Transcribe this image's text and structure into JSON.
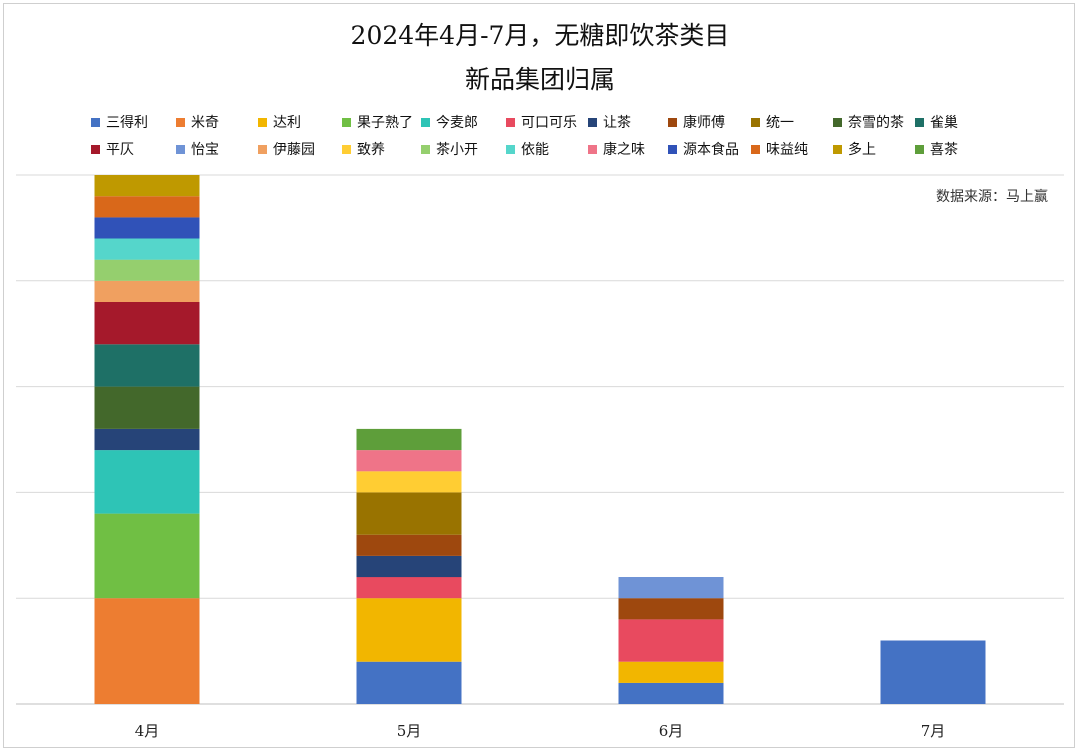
{
  "header": {
    "title_line1": "2024年4月-7月，无糖即饮茶类目",
    "title_line2": "新品集团归属"
  },
  "source_note": "数据来源：马上赢",
  "chart_data": {
    "type": "bar",
    "stacked": true,
    "categories": [
      "4月",
      "5月",
      "6月",
      "7月"
    ],
    "ylim": [
      0,
      25
    ],
    "yticks": [
      0,
      5,
      10,
      15,
      20,
      25
    ],
    "grid": true,
    "legend_position": "top",
    "series": [
      {
        "name": "三得利",
        "color": "#4472C4",
        "values": [
          0,
          2,
          1,
          3
        ]
      },
      {
        "name": "米奇",
        "color": "#ED7D31",
        "values": [
          5,
          0,
          0,
          0
        ]
      },
      {
        "name": "达利",
        "color": "#F2B600",
        "values": [
          0,
          3,
          1,
          0
        ]
      },
      {
        "name": "果子熟了",
        "color": "#70BF44",
        "values": [
          4,
          0,
          0,
          0
        ]
      },
      {
        "name": "今麦郎",
        "color": "#2EC4B6",
        "values": [
          3,
          0,
          0,
          0
        ]
      },
      {
        "name": "可口可乐",
        "color": "#E84A5F",
        "values": [
          0,
          1,
          2,
          0
        ]
      },
      {
        "name": "让茶",
        "color": "#264478",
        "values": [
          1,
          1,
          0,
          0
        ]
      },
      {
        "name": "康师傅",
        "color": "#9E480E",
        "values": [
          0,
          1,
          1,
          0
        ]
      },
      {
        "name": "统一",
        "color": "#997300",
        "values": [
          0,
          2,
          0,
          0
        ]
      },
      {
        "name": "奈雪的茶",
        "color": "#43682B",
        "values": [
          2,
          0,
          0,
          0
        ]
      },
      {
        "name": "雀巢",
        "color": "#1E7066",
        "values": [
          2,
          0,
          0,
          0
        ]
      },
      {
        "name": "平仄",
        "color": "#A5192B",
        "values": [
          2,
          0,
          0,
          0
        ]
      },
      {
        "name": "怡宝",
        "color": "#6F93D6",
        "values": [
          0,
          0,
          1,
          0
        ]
      },
      {
        "name": "伊藤园",
        "color": "#F0A060",
        "values": [
          1,
          0,
          0,
          0
        ]
      },
      {
        "name": "致养",
        "color": "#FFCD33",
        "values": [
          0,
          1,
          0,
          0
        ]
      },
      {
        "name": "茶小开",
        "color": "#95CF6E",
        "values": [
          1,
          0,
          0,
          0
        ]
      },
      {
        "name": "依能",
        "color": "#55D6CB",
        "values": [
          1,
          0,
          0,
          0
        ]
      },
      {
        "name": "康之味",
        "color": "#EF7488",
        "values": [
          0,
          1,
          0,
          0
        ]
      },
      {
        "name": "源本食品",
        "color": "#3052B8",
        "values": [
          1,
          0,
          0,
          0
        ]
      },
      {
        "name": "味益纯",
        "color": "#D9681A",
        "values": [
          1,
          0,
          0,
          0
        ]
      },
      {
        "name": "多上",
        "color": "#BF9900",
        "values": [
          1,
          0,
          0,
          0
        ]
      },
      {
        "name": "喜茶",
        "color": "#5E9E3A",
        "values": [
          0,
          1,
          0,
          0
        ]
      }
    ]
  }
}
